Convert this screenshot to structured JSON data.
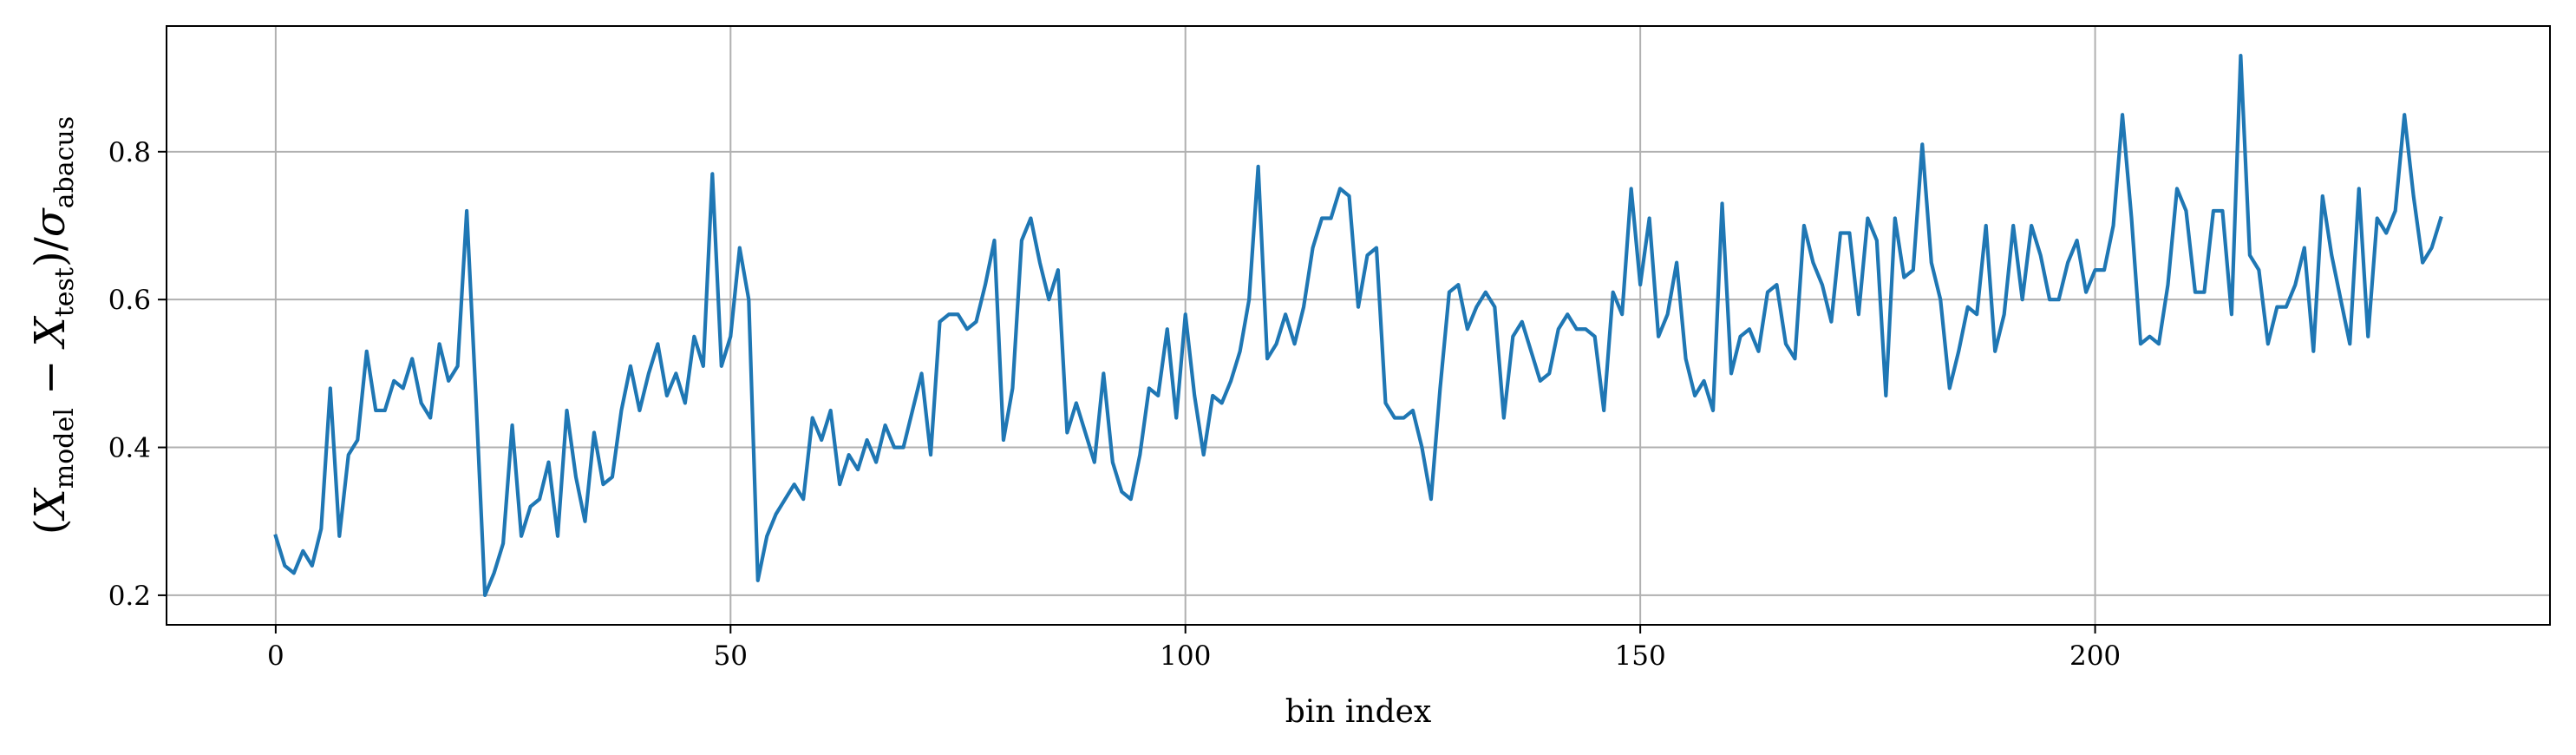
{
  "chart_data": {
    "type": "line",
    "xlabel": "bin index",
    "ylabel": {
      "open": "(",
      "x1": "X",
      "sub1": "model",
      "minus": " − ",
      "x2": "X",
      "sub2": "test",
      "close": ")/",
      "sigma": "σ",
      "sub3": "abacus"
    },
    "xlim": [
      -12,
      250
    ],
    "ylim": [
      0.16,
      0.97
    ],
    "xticks": [
      0,
      50,
      100,
      150,
      200
    ],
    "xtick_labels": [
      "0",
      "50",
      "100",
      "150",
      "200"
    ],
    "yticks": [
      0.2,
      0.4,
      0.6,
      0.8
    ],
    "ytick_labels": [
      "0.2",
      "0.4",
      "0.6",
      "0.8"
    ],
    "grid": true,
    "series": [
      {
        "color": "#1f77b4",
        "x_start": 0,
        "x_step": 1,
        "values": [
          0.28,
          0.24,
          0.23,
          0.26,
          0.24,
          0.29,
          0.48,
          0.28,
          0.39,
          0.41,
          0.53,
          0.45,
          0.45,
          0.49,
          0.48,
          0.52,
          0.46,
          0.44,
          0.54,
          0.49,
          0.51,
          0.72,
          0.47,
          0.2,
          0.23,
          0.27,
          0.43,
          0.28,
          0.32,
          0.33,
          0.38,
          0.28,
          0.45,
          0.36,
          0.3,
          0.42,
          0.35,
          0.36,
          0.45,
          0.51,
          0.45,
          0.5,
          0.54,
          0.47,
          0.5,
          0.46,
          0.55,
          0.51,
          0.77,
          0.51,
          0.55,
          0.67,
          0.6,
          0.22,
          0.28,
          0.31,
          0.33,
          0.35,
          0.33,
          0.44,
          0.41,
          0.45,
          0.35,
          0.39,
          0.37,
          0.41,
          0.38,
          0.43,
          0.4,
          0.4,
          0.45,
          0.5,
          0.39,
          0.57,
          0.58,
          0.58,
          0.56,
          0.57,
          0.62,
          0.68,
          0.41,
          0.48,
          0.68,
          0.71,
          0.65,
          0.6,
          0.64,
          0.42,
          0.46,
          0.42,
          0.38,
          0.5,
          0.38,
          0.34,
          0.33,
          0.39,
          0.48,
          0.47,
          0.56,
          0.44,
          0.58,
          0.47,
          0.39,
          0.47,
          0.46,
          0.49,
          0.53,
          0.6,
          0.78,
          0.52,
          0.54,
          0.58,
          0.54,
          0.59,
          0.67,
          0.71,
          0.71,
          0.75,
          0.74,
          0.59,
          0.66,
          0.67,
          0.46,
          0.44,
          0.44,
          0.45,
          0.4,
          0.33,
          0.48,
          0.61,
          0.62,
          0.56,
          0.59,
          0.61,
          0.59,
          0.44,
          0.55,
          0.57,
          0.53,
          0.49,
          0.5,
          0.56,
          0.58,
          0.56,
          0.56,
          0.55,
          0.45,
          0.61,
          0.58,
          0.75,
          0.62,
          0.71,
          0.55,
          0.58,
          0.65,
          0.52,
          0.47,
          0.49,
          0.45,
          0.73,
          0.5,
          0.55,
          0.56,
          0.53,
          0.61,
          0.62,
          0.54,
          0.52,
          0.7,
          0.65,
          0.62,
          0.57,
          0.69,
          0.69,
          0.58,
          0.71,
          0.68,
          0.47,
          0.71,
          0.63,
          0.64,
          0.81,
          0.65,
          0.6,
          0.48,
          0.53,
          0.59,
          0.58,
          0.7,
          0.53,
          0.58,
          0.7,
          0.6,
          0.7,
          0.66,
          0.6,
          0.6,
          0.65,
          0.68,
          0.61,
          0.64,
          0.64,
          0.7,
          0.85,
          0.71,
          0.54,
          0.55,
          0.54,
          0.62,
          0.75,
          0.72,
          0.61,
          0.61,
          0.72,
          0.72,
          0.58,
          0.93,
          0.66,
          0.64,
          0.54,
          0.59,
          0.59,
          0.62,
          0.67,
          0.53,
          0.74,
          0.66,
          0.6,
          0.54,
          0.75,
          0.55,
          0.71,
          0.69,
          0.72,
          0.85,
          0.74,
          0.65,
          0.67,
          0.71
        ]
      }
    ]
  }
}
